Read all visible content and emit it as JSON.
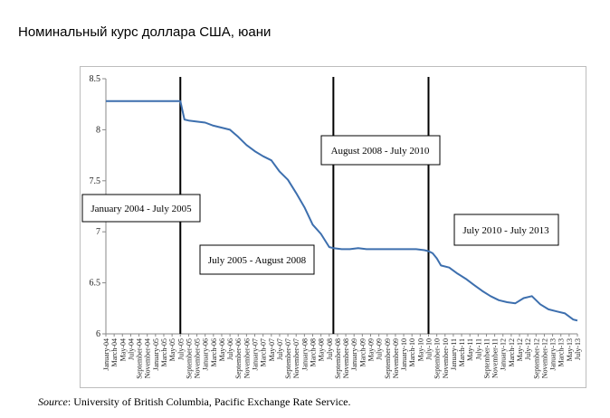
{
  "page_title": "Номинальный курс доллара США, юани",
  "source": {
    "label": "Source",
    "text": ": University of British Columbia, Pacific Exchange Rate Service."
  },
  "colors": {
    "series": "#3d6fae",
    "divider": "#000000",
    "frame": "#bdbdbd"
  },
  "chart_data": {
    "type": "line",
    "title": "",
    "xlabel": "",
    "ylabel": "",
    "ylim": [
      6,
      8.5
    ],
    "yticks": [
      6,
      6.5,
      7,
      7.5,
      8,
      8.5
    ],
    "ytick_labels": [
      "6",
      "6.5",
      "7",
      "7.5",
      "8",
      "8.5"
    ],
    "x_start": "2004-01",
    "x_end": "2013-07",
    "x_tick_labels": [
      "January-04",
      "March-04",
      "May-04",
      "July-04",
      "September-04",
      "November-04",
      "January-05",
      "March-05",
      "May-05",
      "July-05",
      "September-05",
      "November-05",
      "January-06",
      "March-06",
      "May-06",
      "July-06",
      "September-06",
      "November-06",
      "January-07",
      "March-07",
      "May-07",
      "July-07",
      "September-07",
      "November-07",
      "January-08",
      "March-08",
      "May-08",
      "July-08",
      "September-08",
      "November-08",
      "January-09",
      "March-09",
      "May-09",
      "July-09",
      "September-09",
      "November-09",
      "January-10",
      "March-10",
      "May-10",
      "July-10",
      "September-10",
      "November-10",
      "January-11",
      "March-11",
      "May-11",
      "July-11",
      "September-11",
      "November-11",
      "January-12",
      "March-12",
      "May-12",
      "July-12",
      "September-12",
      "November-12",
      "January-13",
      "March-13",
      "May-13",
      "July-13"
    ],
    "series": [
      {
        "x": [
          "2004-01",
          "2004-07",
          "2005-01",
          "2005-07",
          "2005-08",
          "2005-09",
          "2005-11",
          "2006-01",
          "2006-03",
          "2006-05",
          "2006-07",
          "2006-09",
          "2006-11",
          "2007-01",
          "2007-03",
          "2007-05",
          "2007-07",
          "2007-09",
          "2007-11",
          "2008-01",
          "2008-03",
          "2008-05",
          "2008-07",
          "2008-08",
          "2008-10",
          "2008-12",
          "2009-02",
          "2009-04",
          "2009-06",
          "2009-08",
          "2009-10",
          "2009-12",
          "2010-02",
          "2010-04",
          "2010-06",
          "2010-07",
          "2010-08",
          "2010-09",
          "2010-10",
          "2010-12",
          "2011-02",
          "2011-04",
          "2011-06",
          "2011-08",
          "2011-10",
          "2011-12",
          "2012-02",
          "2012-04",
          "2012-06",
          "2012-08",
          "2012-10",
          "2012-12",
          "2013-02",
          "2013-04",
          "2013-06",
          "2013-07"
        ],
        "y": [
          8.28,
          8.28,
          8.28,
          8.28,
          8.1,
          8.09,
          8.08,
          8.07,
          8.04,
          8.02,
          8.0,
          7.93,
          7.85,
          7.79,
          7.74,
          7.7,
          7.59,
          7.51,
          7.38,
          7.24,
          7.07,
          6.98,
          6.85,
          6.84,
          6.83,
          6.83,
          6.84,
          6.83,
          6.83,
          6.83,
          6.83,
          6.83,
          6.83,
          6.83,
          6.82,
          6.81,
          6.79,
          6.74,
          6.67,
          6.65,
          6.59,
          6.54,
          6.48,
          6.42,
          6.37,
          6.33,
          6.31,
          6.3,
          6.35,
          6.37,
          6.29,
          6.24,
          6.22,
          6.2,
          6.14,
          6.13
        ]
      }
    ],
    "dividers": [
      "2005-07",
      "2008-08",
      "2010-07"
    ],
    "period_labels": [
      "January 2004 - July 2005",
      "July 2005 - August 2008",
      "August 2008 - July 2010",
      "July 2010 - July 2013"
    ]
  }
}
